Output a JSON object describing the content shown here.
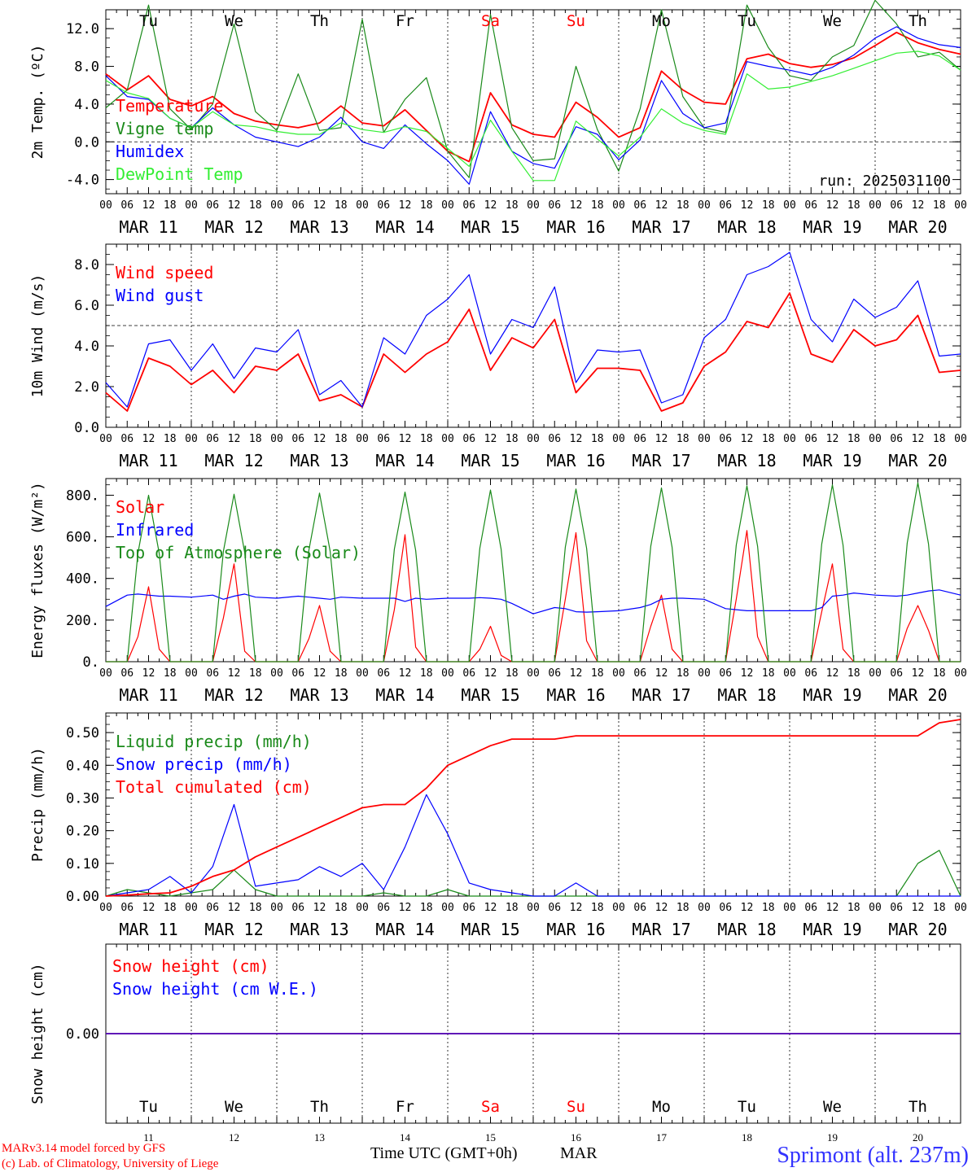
{
  "colors": {
    "red": "#ff0000",
    "darkgreen": "#1a8a1a",
    "blue": "#0000ff",
    "lightgreen": "#33ee33",
    "axis": "#000000",
    "station": "#3333ff"
  },
  "run_label": "run: 2025031100",
  "hour_ticks": [
    "00",
    "06",
    "12",
    "18"
  ],
  "end_tick": "00",
  "date_labels": [
    "MAR 11",
    "MAR 12",
    "MAR 13",
    "MAR 14",
    "MAR 15",
    "MAR 16",
    "MAR 17",
    "MAR 18",
    "MAR 19",
    "MAR 20"
  ],
  "weekdays": [
    {
      "label": "Tu",
      "weekend": false
    },
    {
      "label": "We",
      "weekend": false
    },
    {
      "label": "Th",
      "weekend": false
    },
    {
      "label": "Fr",
      "weekend": false
    },
    {
      "label": "Sa",
      "weekend": true
    },
    {
      "label": "Su",
      "weekend": true
    },
    {
      "label": "Mo",
      "weekend": false
    },
    {
      "label": "Tu",
      "weekend": false
    },
    {
      "label": "We",
      "weekend": false
    },
    {
      "label": "Th",
      "weekend": false
    }
  ],
  "day_numbers": [
    "11",
    "12",
    "13",
    "14",
    "15",
    "16",
    "17",
    "18",
    "19",
    "20"
  ],
  "xlabel": "Time UTC (GMT+0h)",
  "month": "MAR",
  "footer": {
    "model": "MARv3.14 model forced by GFS",
    "credit": "(c) Lab. of Climatology, University of Liege"
  },
  "station": "Sprimont (alt. 237m)",
  "chart_data": [
    {
      "type": "line",
      "ylabel": "2m Temp. (ºC)",
      "yticks": [
        "-4.0",
        "0.0",
        "4.0",
        "8.0",
        "12.0"
      ],
      "ylim": [
        -5.5,
        14
      ],
      "reference_line": 0,
      "x_unit": "hours since 2025-03-11 00 UTC",
      "x": [
        0,
        6,
        12,
        18,
        24,
        30,
        36,
        42,
        48,
        54,
        60,
        66,
        72,
        78,
        84,
        90,
        96,
        102,
        108,
        114,
        120,
        126,
        132,
        138,
        144,
        150,
        156,
        162,
        168,
        174,
        180,
        186,
        192,
        198,
        204,
        210,
        216,
        222,
        228,
        234,
        240
      ],
      "series": [
        {
          "name": "Temperature",
          "color": "red",
          "values": [
            7.2,
            5.5,
            7.0,
            4.5,
            3.8,
            4.8,
            3.0,
            2.2,
            1.8,
            1.5,
            2.0,
            3.8,
            2.0,
            1.7,
            3.4,
            1.2,
            -1.0,
            -2.1,
            5.2,
            1.8,
            0.8,
            0.5,
            4.2,
            2.6,
            0.5,
            1.5,
            7.5,
            5.5,
            4.2,
            4.0,
            8.8,
            9.3,
            8.3,
            7.9,
            8.2,
            8.9,
            10.2,
            11.6,
            10.5,
            9.8,
            9.3
          ]
        },
        {
          "name": "Vigne temp",
          "color": "darkgreen",
          "values": [
            3.6,
            5.5,
            14.5,
            3.5,
            1.3,
            4.0,
            12.5,
            3.2,
            1.2,
            7.2,
            1.2,
            1.5,
            13.0,
            1.0,
            4.5,
            6.8,
            -1.0,
            -3.8,
            13.5,
            1.5,
            -2.0,
            -1.8,
            8.0,
            1.3,
            -3.1,
            3.5,
            14.0,
            4.8,
            1.5,
            1.0,
            14.5,
            10.0,
            7.0,
            6.5,
            9.0,
            10.2,
            15.0,
            12.5,
            9.0,
            9.5,
            7.6
          ]
        },
        {
          "name": "Humidex",
          "color": "blue",
          "values": [
            7.0,
            4.8,
            4.5,
            2.5,
            1.5,
            3.6,
            1.8,
            0.5,
            0.0,
            -0.5,
            0.5,
            2.6,
            0.0,
            -0.7,
            1.8,
            -0.2,
            -2.0,
            -4.5,
            3.2,
            -1.0,
            -2.3,
            -2.8,
            1.6,
            0.8,
            -1.9,
            0.2,
            6.5,
            3.0,
            1.5,
            2.0,
            8.5,
            8.0,
            7.6,
            7.1,
            7.9,
            9.2,
            11.0,
            12.2,
            11.0,
            10.3,
            10.0
          ]
        },
        {
          "name": "DewPoint Temp",
          "color": "lightgreen",
          "values": [
            6.5,
            5.2,
            4.6,
            2.5,
            1.5,
            3.2,
            1.8,
            1.6,
            1.1,
            0.8,
            0.8,
            2.0,
            1.3,
            1.0,
            1.6,
            1.1,
            -0.7,
            -2.6,
            2.3,
            -1.0,
            -4.1,
            -4.1,
            2.2,
            0.3,
            -1.5,
            0.5,
            3.5,
            2.0,
            1.2,
            0.8,
            7.2,
            5.6,
            5.8,
            6.4,
            7.0,
            7.8,
            8.6,
            9.4,
            9.6,
            9.1,
            7.6
          ]
        }
      ]
    },
    {
      "type": "line",
      "ylabel": "10m Wind (m/s)",
      "yticks": [
        "0.0",
        "2.0",
        "4.0",
        "6.0",
        "8.0"
      ],
      "ylim": [
        0,
        9
      ],
      "reference_line": 5,
      "x_unit": "hours since 2025-03-11 00 UTC",
      "x": [
        0,
        6,
        12,
        18,
        24,
        30,
        36,
        42,
        48,
        54,
        60,
        66,
        72,
        78,
        84,
        90,
        96,
        102,
        108,
        114,
        120,
        126,
        132,
        138,
        144,
        150,
        156,
        162,
        168,
        174,
        180,
        186,
        192,
        198,
        204,
        210,
        216,
        222,
        228,
        234,
        240
      ],
      "series": [
        {
          "name": "Wind speed",
          "color": "red",
          "values": [
            1.7,
            0.8,
            3.4,
            3.0,
            2.1,
            2.8,
            1.7,
            3.0,
            2.8,
            3.6,
            1.3,
            1.6,
            1.0,
            3.6,
            2.7,
            3.6,
            4.2,
            5.8,
            2.8,
            4.4,
            3.9,
            5.3,
            1.7,
            2.9,
            2.9,
            2.8,
            0.8,
            1.2,
            3.0,
            3.7,
            5.2,
            4.9,
            6.6,
            3.6,
            3.2,
            4.8,
            4.0,
            4.3,
            5.5,
            2.7,
            2.8
          ]
        },
        {
          "name": "Wind gust",
          "color": "blue",
          "values": [
            2.2,
            1.0,
            4.1,
            4.3,
            2.8,
            4.1,
            2.4,
            3.9,
            3.7,
            4.8,
            1.6,
            2.3,
            1.0,
            4.4,
            3.6,
            5.5,
            6.3,
            7.5,
            3.6,
            5.3,
            4.9,
            6.9,
            2.2,
            3.8,
            3.7,
            3.8,
            1.2,
            1.6,
            4.4,
            5.3,
            7.5,
            7.9,
            8.6,
            5.3,
            4.2,
            6.3,
            5.4,
            5.9,
            7.2,
            3.5,
            3.6
          ]
        }
      ]
    },
    {
      "type": "line",
      "ylabel": "Energy fluxes (W/m²)",
      "yticks": [
        "0.",
        "200.",
        "400.",
        "600.",
        "800."
      ],
      "ylim": [
        0,
        880
      ],
      "x_unit": "hours since 2025-03-11 00 UTC",
      "x": [
        0,
        6,
        9,
        12,
        15,
        18,
        24,
        30,
        33,
        36,
        39,
        42,
        48,
        54,
        57,
        60,
        63,
        66,
        72,
        78,
        81,
        84,
        87,
        90,
        96,
        102,
        105,
        108,
        111,
        114,
        120,
        126,
        129,
        132,
        135,
        138,
        144,
        150,
        153,
        156,
        159,
        162,
        168,
        174,
        177,
        180,
        183,
        186,
        192,
        198,
        201,
        204,
        207,
        210,
        216,
        222,
        225,
        228,
        231,
        234,
        240
      ],
      "series": [
        {
          "name": "Solar",
          "color": "red",
          "values": [
            0,
            0,
            120,
            360,
            60,
            0,
            0,
            0,
            210,
            470,
            50,
            0,
            0,
            0,
            110,
            270,
            50,
            0,
            0,
            0,
            250,
            610,
            70,
            0,
            0,
            0,
            60,
            170,
            30,
            0,
            0,
            0,
            300,
            620,
            100,
            0,
            0,
            0,
            170,
            320,
            60,
            0,
            0,
            0,
            300,
            630,
            120,
            0,
            0,
            0,
            240,
            470,
            60,
            0,
            0,
            0,
            160,
            270,
            150,
            0,
            0
          ]
        },
        {
          "name": "Infrared",
          "color": "blue",
          "values": [
            265,
            320,
            325,
            320,
            315,
            315,
            310,
            320,
            300,
            315,
            325,
            310,
            305,
            315,
            310,
            305,
            300,
            310,
            305,
            305,
            305,
            290,
            305,
            300,
            305,
            305,
            308,
            305,
            300,
            280,
            230,
            260,
            255,
            240,
            238,
            240,
            245,
            260,
            275,
            300,
            305,
            305,
            300,
            255,
            250,
            245,
            245,
            245,
            245,
            245,
            260,
            315,
            320,
            330,
            320,
            315,
            320,
            330,
            340,
            345,
            320
          ]
        },
        {
          "name": "Top of Atmosphere (Solar)",
          "color": "darkgreen",
          "values": [
            0,
            0,
            520,
            800,
            520,
            0,
            0,
            0,
            530,
            805,
            525,
            0,
            0,
            0,
            535,
            810,
            530,
            0,
            0,
            0,
            540,
            815,
            535,
            0,
            0,
            0,
            545,
            825,
            540,
            0,
            0,
            0,
            550,
            830,
            545,
            0,
            0,
            0,
            555,
            835,
            550,
            0,
            0,
            0,
            560,
            845,
            555,
            0,
            0,
            0,
            565,
            850,
            560,
            0,
            0,
            0,
            570,
            860,
            565,
            0,
            0
          ]
        }
      ]
    },
    {
      "type": "line",
      "ylabel": "Precip (mm/h)",
      "yticks": [
        "0.00",
        "0.10",
        "0.20",
        "0.30",
        "0.40",
        "0.50"
      ],
      "ylim": [
        0,
        0.56
      ],
      "x_unit": "hours since 2025-03-11 00 UTC",
      "x": [
        0,
        6,
        12,
        18,
        24,
        30,
        36,
        42,
        48,
        54,
        60,
        66,
        72,
        78,
        84,
        90,
        96,
        102,
        108,
        114,
        120,
        126,
        132,
        138,
        144,
        150,
        156,
        162,
        168,
        174,
        180,
        186,
        192,
        198,
        204,
        210,
        216,
        222,
        228,
        234,
        240
      ],
      "series": [
        {
          "name": "Liquid precip (mm/h)",
          "color": "darkgreen",
          "values": [
            0,
            0.02,
            0.01,
            0,
            0.01,
            0.02,
            0.08,
            0.02,
            0,
            0,
            0,
            0,
            0,
            0.01,
            0,
            0,
            0.02,
            0,
            0,
            0,
            0,
            0,
            0,
            0,
            0,
            0,
            0,
            0,
            0,
            0,
            0,
            0,
            0,
            0,
            0,
            0,
            0,
            0,
            0.1,
            0.14,
            0
          ]
        },
        {
          "name": "Snow precip (mm/h)",
          "color": "blue",
          "values": [
            0,
            0.01,
            0.02,
            0.06,
            0.01,
            0.09,
            0.28,
            0.03,
            0.04,
            0.05,
            0.09,
            0.06,
            0.1,
            0.02,
            0.15,
            0.31,
            0.19,
            0.04,
            0.02,
            0.01,
            0,
            0,
            0.04,
            0,
            0,
            0,
            0,
            0,
            0,
            0,
            0,
            0,
            0,
            0,
            0,
            0,
            0,
            0,
            0,
            0,
            0
          ]
        },
        {
          "name": "Total cumulated (cm)",
          "color": "red",
          "values": [
            0,
            0.003,
            0.007,
            0.01,
            0.03,
            0.06,
            0.08,
            0.12,
            0.15,
            0.18,
            0.21,
            0.24,
            0.27,
            0.28,
            0.28,
            0.33,
            0.4,
            0.43,
            0.46,
            0.48,
            0.48,
            0.48,
            0.49,
            0.49,
            0.49,
            0.49,
            0.49,
            0.49,
            0.49,
            0.49,
            0.49,
            0.49,
            0.49,
            0.49,
            0.49,
            0.49,
            0.49,
            0.49,
            0.49,
            0.53,
            0.54
          ]
        }
      ]
    },
    {
      "type": "line",
      "ylabel": "Snow height (cm)",
      "yticks": [
        "0.00"
      ],
      "ylim": [
        -1,
        1
      ],
      "x_unit": "hours since 2025-03-11 00 UTC",
      "x": [
        0,
        240
      ],
      "series": [
        {
          "name": "Snow height (cm)",
          "color": "red",
          "values": [
            0,
            0
          ]
        },
        {
          "name": "Snow height (cm W.E.)",
          "color": "blue",
          "values": [
            0,
            0
          ]
        }
      ]
    }
  ]
}
